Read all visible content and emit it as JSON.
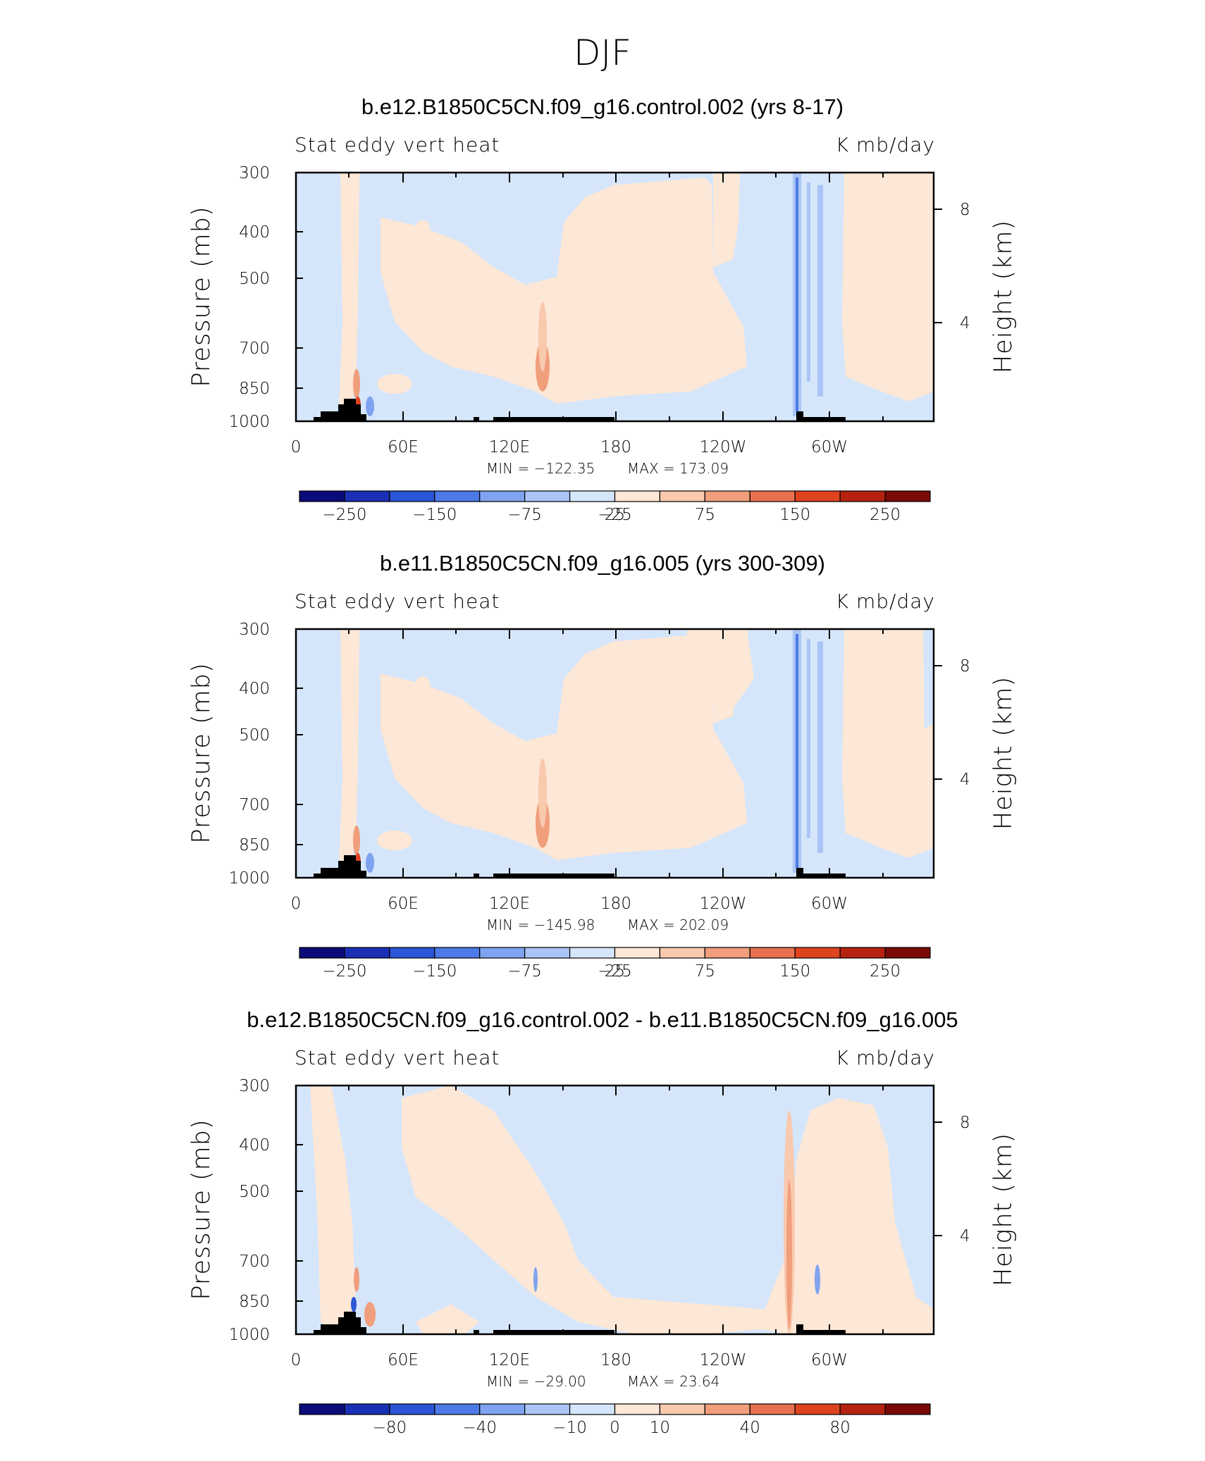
{
  "figure": {
    "title": "DJF"
  },
  "colors": {
    "scale": [
      "#0b0b7a",
      "#1a2fb5",
      "#2a55d6",
      "#4d7ae8",
      "#7fa3f0",
      "#aac4f5",
      "#d5e6fb",
      "#fde7d6",
      "#f8c9ad",
      "#f09e7c",
      "#e8704f",
      "#de4320",
      "#b52310",
      "#7a0a06"
    ],
    "land": "#000000",
    "frame": "#000000"
  },
  "chart_data": [
    {
      "type": "heatmap",
      "title": "b.e12.B1850C5CN.f09_g16.control.002 (yrs 8-17)",
      "left_string": "Stat eddy vert heat",
      "right_string": "K mb/day",
      "ylabel": "Pressure (mb)",
      "ylabel_right": "Height (km)",
      "y_ticks": [
        "300",
        "400",
        "500",
        "700",
        "850",
        "1000"
      ],
      "y_right_ticks": [
        "8",
        "4"
      ],
      "x_ticks": [
        "0",
        "60E",
        "120E",
        "180",
        "120W",
        "60W"
      ],
      "min_label": "MIN = −122.35",
      "max_label": "MAX = 173.09",
      "min": -122.35,
      "max": 173.09,
      "colorbar_labels": [
        "−250",
        "−150",
        "−75",
        "−25",
        "25",
        "75",
        "150",
        "250"
      ]
    },
    {
      "type": "heatmap",
      "title": "b.e11.B1850C5CN.f09_g16.005 (yrs 300-309)",
      "left_string": "Stat eddy vert heat",
      "right_string": "K mb/day",
      "ylabel": "Pressure (mb)",
      "ylabel_right": "Height (km)",
      "y_ticks": [
        "300",
        "400",
        "500",
        "700",
        "850",
        "1000"
      ],
      "y_right_ticks": [
        "8",
        "4"
      ],
      "x_ticks": [
        "0",
        "60E",
        "120E",
        "180",
        "120W",
        "60W"
      ],
      "min_label": "MIN = −145.98",
      "max_label": "MAX = 202.09",
      "min": -145.98,
      "max": 202.09,
      "colorbar_labels": [
        "−250",
        "−150",
        "−75",
        "−25",
        "25",
        "75",
        "150",
        "250"
      ]
    },
    {
      "type": "heatmap",
      "title": "b.e12.B1850C5CN.f09_g16.control.002 - b.e11.B1850C5CN.f09_g16.005",
      "left_string": "Stat eddy vert heat",
      "right_string": "K mb/day",
      "ylabel": "Pressure (mb)",
      "ylabel_right": "Height (km)",
      "y_ticks": [
        "300",
        "400",
        "500",
        "700",
        "850",
        "1000"
      ],
      "y_right_ticks": [
        "8",
        "4"
      ],
      "x_ticks": [
        "0",
        "60E",
        "120E",
        "180",
        "120W",
        "60W"
      ],
      "min_label": "MIN = −29.00",
      "max_label": "MAX =   23.64",
      "min": -29.0,
      "max": 23.64,
      "colorbar_labels": [
        "−80",
        "−40",
        "−10",
        "0",
        "10",
        "40",
        "80"
      ]
    }
  ]
}
